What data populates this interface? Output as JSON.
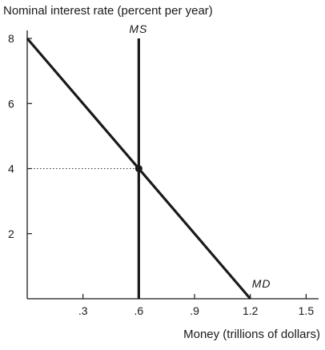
{
  "chart_data": {
    "type": "line",
    "title": "",
    "ylabel": "Nominal interest rate (percent per year)",
    "xlabel": "Money (trillions of dollars)",
    "xlim": [
      0,
      1.55
    ],
    "ylim": [
      0,
      8.4
    ],
    "x_ticks": [
      {
        "value": 0.3,
        "label": ".3"
      },
      {
        "value": 0.6,
        "label": ".6"
      },
      {
        "value": 0.9,
        "label": ".9"
      },
      {
        "value": 1.2,
        "label": "1.2"
      },
      {
        "value": 1.5,
        "label": "1.5"
      }
    ],
    "y_ticks": [
      {
        "value": 2,
        "label": "2"
      },
      {
        "value": 4,
        "label": "4"
      },
      {
        "value": 6,
        "label": "6"
      },
      {
        "value": 8,
        "label": "8"
      }
    ],
    "grid": false,
    "series": [
      {
        "name": "MD",
        "x": [
          0,
          1.2
        ],
        "y": [
          8,
          0
        ]
      },
      {
        "name": "MS",
        "x": [
          0.6,
          0.6
        ],
        "y": [
          0,
          8
        ]
      }
    ],
    "equilibrium": {
      "x": 0.6,
      "y": 4
    },
    "colors": {
      "line": "#1a1a1a",
      "guide": "#333333"
    }
  }
}
